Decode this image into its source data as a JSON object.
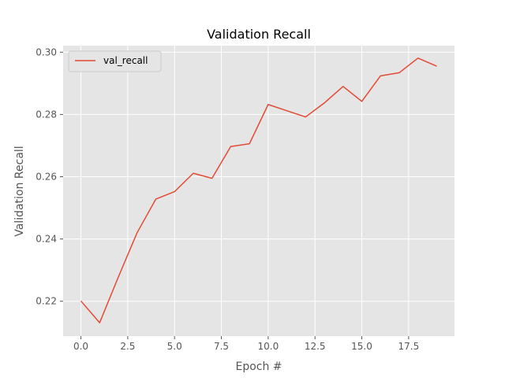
{
  "chart_data": {
    "type": "line",
    "title": "Validation Recall",
    "xlabel": "Epoch #",
    "ylabel": "Validation Recall",
    "xlim": [
      -0.95,
      19.95
    ],
    "ylim": [
      0.2088,
      0.3021
    ],
    "xticks": [
      0,
      2.5,
      5,
      7.5,
      10,
      12.5,
      15,
      17.5
    ],
    "xtick_labels": [
      "0.0",
      "2.5",
      "5.0",
      "7.5",
      "10.0",
      "12.5",
      "15.0",
      "17.5"
    ],
    "yticks": [
      0.22,
      0.24,
      0.26,
      0.28,
      0.3
    ],
    "ytick_labels": [
      "0.22",
      "0.24",
      "0.26",
      "0.28",
      "0.30"
    ],
    "grid": true,
    "legend_position": "upper-left",
    "background_color": "#e5e5e5",
    "series": [
      {
        "name": "val_recall",
        "color": "#e24a33",
        "x": [
          0,
          1,
          2,
          3,
          4,
          5,
          6,
          7,
          8,
          9,
          10,
          11,
          12,
          13,
          14,
          15,
          16,
          17,
          18,
          19
        ],
        "values": [
          0.2201,
          0.2131,
          0.2278,
          0.242,
          0.2528,
          0.2552,
          0.2611,
          0.2595,
          0.2697,
          0.2706,
          0.2832,
          0.2812,
          0.2792,
          0.2837,
          0.289,
          0.2842,
          0.2924,
          0.2934,
          0.2981,
          0.2955
        ]
      }
    ]
  }
}
